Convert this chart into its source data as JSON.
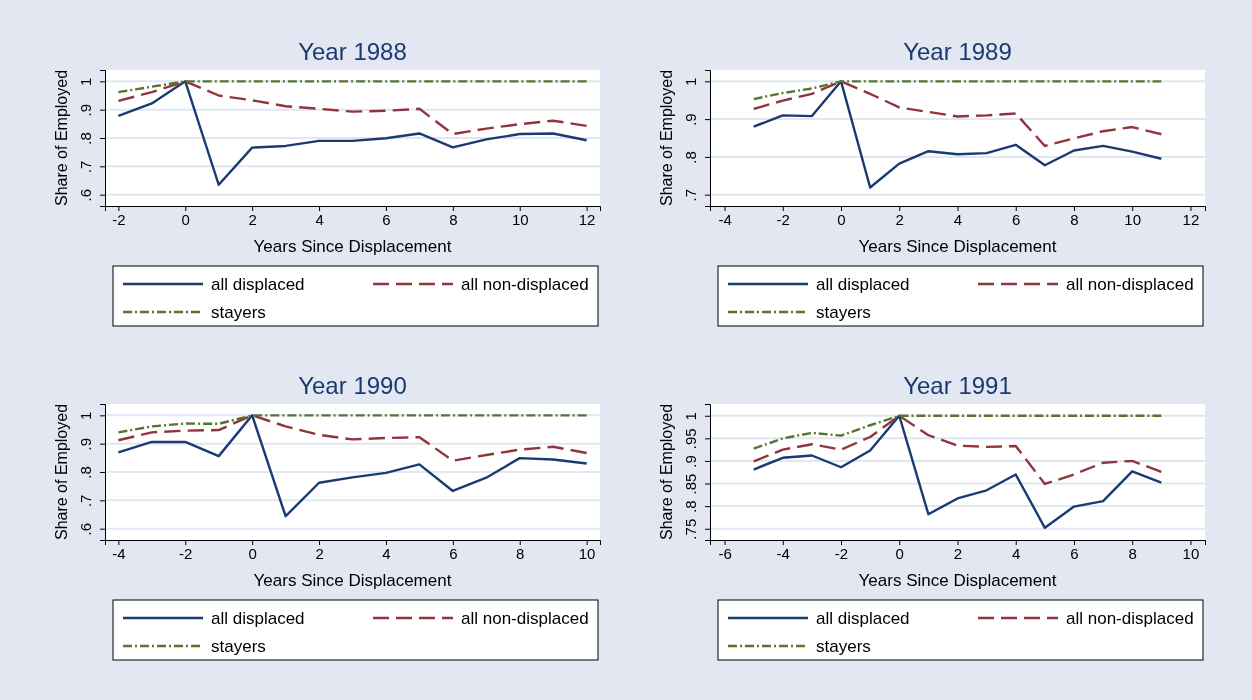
{
  "chart_data": [
    {
      "type": "line",
      "title": "Year 1988",
      "xlabel": "Years Since Displacement",
      "ylabel": "Share of Employed",
      "x": [
        -2,
        -1,
        0,
        1,
        2,
        3,
        4,
        5,
        6,
        7,
        8,
        9,
        10,
        11,
        12
      ],
      "xlim": [
        -2.4,
        12.4
      ],
      "xticks": [
        -2,
        0,
        2,
        4,
        6,
        8,
        10,
        12
      ],
      "ylim": [
        0.56,
        1.04
      ],
      "yticks": [
        {
          "value": 0.6,
          "label": ".6"
        },
        {
          "value": 0.7,
          "label": ".7"
        },
        {
          "value": 0.8,
          "label": ".8"
        },
        {
          "value": 0.9,
          "label": ".9"
        },
        {
          "value": 1,
          "label": "1"
        }
      ],
      "grid": "y",
      "legend": "bottom",
      "marker": "none",
      "series": [
        {
          "name": "all displaced",
          "color": "#1a3a72",
          "line_style": "solid",
          "values": [
            0.878,
            0.922,
            1,
            0.635,
            0.766,
            0.772,
            0.79,
            0.79,
            0.799,
            0.816,
            0.767,
            0.795,
            0.814,
            0.816,
            0.792
          ]
        },
        {
          "name": "all non-displaced",
          "color": "#90353b",
          "line_style": "dashed",
          "values": [
            0.931,
            0.962,
            1,
            0.95,
            0.933,
            0.912,
            0.903,
            0.893,
            0.896,
            0.903,
            0.814,
            0.833,
            0.849,
            0.861,
            0.843
          ]
        },
        {
          "name": "stayers",
          "color": "#55752f",
          "line_style": "dashdot",
          "values": [
            0.962,
            0.981,
            1,
            1,
            1,
            1,
            1,
            1,
            1,
            1,
            1,
            1,
            1,
            1,
            1
          ]
        }
      ]
    },
    {
      "type": "line",
      "title": "Year 1989",
      "xlabel": "Years Since Displacement",
      "ylabel": "Share of Employed",
      "x": [
        -3,
        -2,
        -1,
        0,
        1,
        2,
        3,
        4,
        5,
        6,
        7,
        8,
        9,
        10,
        11
      ],
      "xlim": [
        -4.5,
        12.5
      ],
      "xticks": [
        -4,
        -2,
        0,
        2,
        4,
        6,
        8,
        10,
        12
      ],
      "ylim": [
        0.67,
        1.03
      ],
      "yticks": [
        {
          "value": 0.7,
          "label": ".7"
        },
        {
          "value": 0.8,
          "label": ".8"
        },
        {
          "value": 0.9,
          "label": ".9"
        },
        {
          "value": 1,
          "label": "1"
        }
      ],
      "grid": "y",
      "legend": "bottom",
      "marker": "none",
      "series": [
        {
          "name": "all displaced",
          "color": "#1a3a72",
          "line_style": "solid",
          "values": [
            0.88,
            0.91,
            0.908,
            1,
            0.719,
            0.782,
            0.815,
            0.807,
            0.81,
            0.832,
            0.778,
            0.817,
            0.829,
            0.814,
            0.795
          ]
        },
        {
          "name": "all non-displaced",
          "color": "#90353b",
          "line_style": "dashed",
          "values": [
            0.927,
            0.949,
            0.967,
            1,
            0.967,
            0.931,
            0.919,
            0.907,
            0.91,
            0.915,
            0.829,
            0.849,
            0.868,
            0.879,
            0.86
          ]
        },
        {
          "name": "stayers",
          "color": "#55752f",
          "line_style": "dashdot",
          "values": [
            0.953,
            0.969,
            0.981,
            1,
            1,
            1,
            1,
            1,
            1,
            1,
            1,
            1,
            1,
            1,
            1
          ]
        }
      ]
    },
    {
      "type": "line",
      "title": "Year 1990",
      "xlabel": "Years Since Displacement",
      "ylabel": "Share of Employed",
      "x": [
        -4,
        -3,
        -2,
        -1,
        0,
        1,
        2,
        3,
        4,
        5,
        6,
        7,
        8,
        9,
        10
      ],
      "xlim": [
        -4.4,
        10.4
      ],
      "xticks": [
        -4,
        -2,
        0,
        2,
        4,
        6,
        8,
        10
      ],
      "ylim": [
        0.56,
        1.04
      ],
      "yticks": [
        {
          "value": 0.6,
          "label": ".6"
        },
        {
          "value": 0.7,
          "label": ".7"
        },
        {
          "value": 0.8,
          "label": ".8"
        },
        {
          "value": 0.9,
          "label": ".9"
        },
        {
          "value": 1,
          "label": "1"
        }
      ],
      "grid": "y",
      "legend": "bottom",
      "marker": "none",
      "series": [
        {
          "name": "all displaced",
          "color": "#1a3a72",
          "line_style": "solid",
          "values": [
            0.869,
            0.906,
            0.906,
            0.856,
            1,
            0.644,
            0.762,
            0.781,
            0.797,
            0.827,
            0.733,
            0.78,
            0.849,
            0.844,
            0.83
          ]
        },
        {
          "name": "all non-displaced",
          "color": "#90353b",
          "line_style": "dashed",
          "values": [
            0.912,
            0.94,
            0.946,
            0.948,
            1,
            0.961,
            0.931,
            0.915,
            0.92,
            0.923,
            0.84,
            0.86,
            0.879,
            0.889,
            0.867
          ]
        },
        {
          "name": "stayers",
          "color": "#55752f",
          "line_style": "dashdot",
          "values": [
            0.94,
            0.961,
            0.971,
            0.97,
            1,
            1,
            1,
            1,
            1,
            1,
            1,
            1,
            1,
            1,
            1
          ]
        }
      ]
    },
    {
      "type": "line",
      "title": "Year 1991",
      "xlabel": "Years Since Displacement",
      "ylabel": "Share of Employed",
      "x": [
        -5,
        -4,
        -3,
        -2,
        -1,
        0,
        1,
        2,
        3,
        4,
        5,
        6,
        7,
        8,
        9
      ],
      "xlim": [
        -6.5,
        10.5
      ],
      "xticks": [
        -6,
        -4,
        -2,
        0,
        2,
        4,
        6,
        8,
        10
      ],
      "ylim": [
        0.725,
        1.026
      ],
      "yticks": [
        {
          "value": 0.75,
          "label": ".75"
        },
        {
          "value": 0.8,
          "label": ".8"
        },
        {
          "value": 0.85,
          "label": ".85"
        },
        {
          "value": 0.9,
          "label": ".9"
        },
        {
          "value": 0.95,
          "label": ".95"
        },
        {
          "value": 1,
          "label": "1"
        }
      ],
      "grid": "y",
      "legend": "bottom",
      "marker": "none",
      "series": [
        {
          "name": "all displaced",
          "color": "#1a3a72",
          "line_style": "solid",
          "values": [
            0.881,
            0.907,
            0.912,
            0.886,
            0.923,
            1,
            0.782,
            0.817,
            0.835,
            0.87,
            0.752,
            0.799,
            0.811,
            0.877,
            0.852
          ]
        },
        {
          "name": "all non-displaced",
          "color": "#90353b",
          "line_style": "dashed",
          "values": [
            0.899,
            0.925,
            0.937,
            0.925,
            0.953,
            1,
            0.957,
            0.934,
            0.931,
            0.933,
            0.849,
            0.87,
            0.896,
            0.9,
            0.876
          ]
        },
        {
          "name": "stayers",
          "color": "#55752f",
          "line_style": "dashdot",
          "values": [
            0.927,
            0.95,
            0.962,
            0.956,
            0.979,
            1,
            1,
            1,
            1,
            1,
            1,
            1,
            1,
            1,
            1
          ]
        }
      ]
    }
  ]
}
